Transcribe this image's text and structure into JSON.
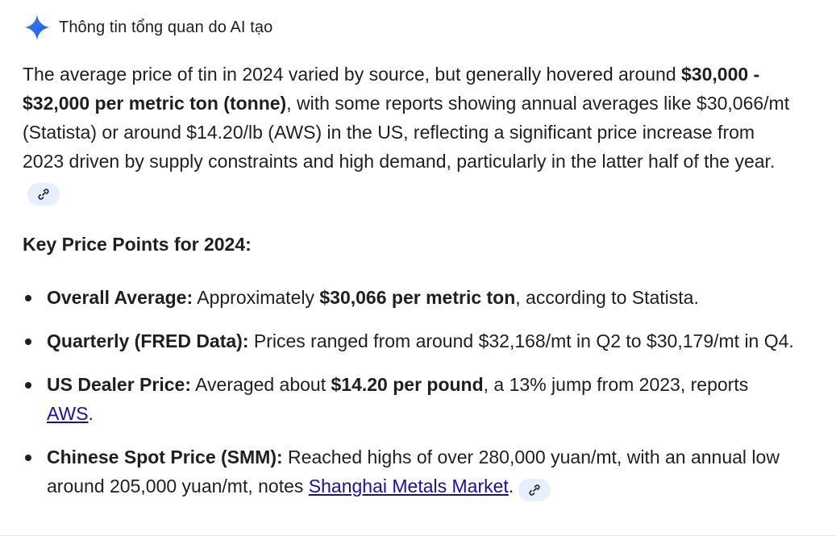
{
  "header": {
    "icon": "sparkle-icon",
    "title": "Thông tin tổng quan do AI tạo",
    "accent_color": "#4285f4"
  },
  "intro": {
    "part1": "The average price of tin in 2024 varied by source, but generally hovered around ",
    "bold": "$30,000 - $32,000 per metric ton (tonne)",
    "part2": ", with some reports showing annual averages like $30,066/mt (Statista) or around $14.20/lb (AWS) in the US, reflecting a significant price increase from 2023 driven by supply constraints and high demand, particularly in the latter half of the year."
  },
  "section": {
    "title": "Key Price Points for 2024:"
  },
  "points": [
    {
      "label": "Overall Average:",
      "t1": " Approximately ",
      "b1": "$30,066 per metric ton",
      "t2": ", according to Statista."
    },
    {
      "label": "Quarterly (FRED Data):",
      "t1": " Prices ranged from around $32,168/mt in Q2 to $30,179/mt in Q4."
    },
    {
      "label": "US Dealer Price:",
      "t1": " Averaged about ",
      "b1": "$14.20 per pound",
      "t2": ", a 13% jump from 2023, reports ",
      "link": "AWS",
      "t3": "."
    },
    {
      "label": "Chinese Spot Price (SMM):",
      "t1": " Reached highs of over 280,000 yuan/mt, with an annual low around 205,000 yuan/mt, notes ",
      "link": "Shanghai Metals Market",
      "t2": "."
    }
  ],
  "colors": {
    "text": "#1f1f1f",
    "link": "#1a0dab",
    "chip_bg": "#e7eefc"
  }
}
